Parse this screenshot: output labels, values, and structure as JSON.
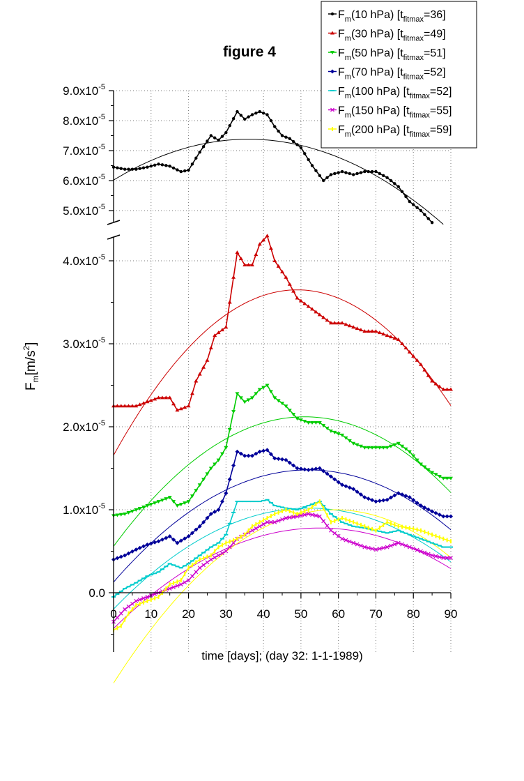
{
  "chart_data": {
    "type": "line",
    "title": "figure 4",
    "xlabel": "time [days]; (day 32: 1-1-1989)",
    "ylabel": "F_m [m/s²]",
    "ylabel_parts": {
      "base": "F",
      "sub": "m",
      "mid": "[m/s",
      "sup": "2",
      "end": "]"
    },
    "xlim": [
      0,
      90
    ],
    "xticks": [
      "0",
      "10",
      "20",
      "30",
      "40",
      "50",
      "60",
      "70",
      "80",
      "90"
    ],
    "yticks_upper": [
      {
        "value": 9.0,
        "mant": "9.0x10",
        "exp": "-5"
      },
      {
        "value": 8.0,
        "mant": "8.0x10",
        "exp": "-5"
      },
      {
        "value": 7.0,
        "mant": "7.0x10",
        "exp": "-5"
      },
      {
        "value": 6.0,
        "mant": "6.0x10",
        "exp": "-5"
      },
      {
        "value": 5.0,
        "mant": "5.0x10",
        "exp": "-5"
      }
    ],
    "yticks_lower": [
      {
        "value": 4.0,
        "mant": "4.0x10",
        "exp": "-5"
      },
      {
        "value": 3.0,
        "mant": "3.0x10",
        "exp": "-5"
      },
      {
        "value": 2.0,
        "mant": "2.0x10",
        "exp": "-5"
      },
      {
        "value": 1.0,
        "mant": "1.0x10",
        "exp": "-5"
      },
      {
        "value": 0.0,
        "mant": "0.0",
        "exp": ""
      }
    ],
    "y_units": "1e-5 m/s^2",
    "y_axis_break": [
      4.4,
      4.5
    ],
    "ylim_upper": [
      4.4,
      9.0
    ],
    "ylim_lower": [
      -0.7,
      4.4
    ],
    "grid": true,
    "legend_position": "top-right",
    "series": [
      {
        "name": "Fm(10 hPa) [tfitmax=36]",
        "legend": {
          "pre": "F",
          "sub1": "m",
          "mid": "(10 hPa) [t",
          "sub2": "fitmax",
          "end": "=36]"
        },
        "color": "#000000",
        "marker": "dot",
        "x": [
          0,
          3,
          6,
          9,
          12,
          15,
          18,
          20,
          23,
          26,
          28,
          30,
          33,
          35,
          37,
          39,
          41,
          43,
          45,
          47,
          50,
          53,
          56,
          58,
          61,
          64,
          67,
          70,
          73,
          76,
          79,
          82,
          85
        ],
        "y": [
          6.45,
          6.38,
          6.38,
          6.45,
          6.55,
          6.48,
          6.3,
          6.35,
          6.95,
          7.5,
          7.35,
          7.6,
          8.3,
          8.05,
          8.2,
          8.3,
          8.2,
          7.8,
          7.5,
          7.4,
          7.1,
          6.5,
          6.0,
          6.2,
          6.3,
          6.2,
          6.3,
          6.3,
          6.1,
          5.8,
          5.3,
          5.0,
          4.6
        ],
        "fit": {
          "peak_x": 36,
          "peak_y": 7.38,
          "curvature": 0.00105
        }
      },
      {
        "name": "Fm(30 hPa) [tfitmax=49]",
        "legend": {
          "pre": "F",
          "sub1": "m",
          "mid": "(30 hPa) [t",
          "sub2": "fitmax",
          "end": "=49]"
        },
        "color": "#cc0000",
        "marker": "triangle",
        "x": [
          0,
          3,
          6,
          9,
          12,
          15,
          17,
          20,
          22,
          25,
          27,
          30,
          33,
          35,
          37,
          39,
          41,
          43,
          46,
          49,
          52,
          55,
          58,
          61,
          64,
          67,
          70,
          73,
          76,
          79,
          82,
          85,
          88,
          90
        ],
        "y": [
          2.25,
          2.25,
          2.25,
          2.3,
          2.35,
          2.35,
          2.2,
          2.25,
          2.55,
          2.8,
          3.1,
          3.2,
          4.1,
          3.95,
          3.95,
          4.2,
          4.3,
          4.0,
          3.8,
          3.55,
          3.45,
          3.35,
          3.25,
          3.25,
          3.2,
          3.15,
          3.15,
          3.1,
          3.05,
          2.9,
          2.75,
          2.55,
          2.45,
          2.45
        ],
        "fit": {
          "peak_x": 49,
          "peak_y": 3.65,
          "curvature": 0.00083
        }
      },
      {
        "name": "Fm(50 hPa) [tfitmax=51]",
        "legend": {
          "pre": "F",
          "sub1": "m",
          "mid": "(50 hPa) [t",
          "sub2": "fitmax",
          "end": "=51]"
        },
        "color": "#00cc00",
        "marker": "triangle-down",
        "x": [
          0,
          3,
          6,
          9,
          12,
          15,
          17,
          20,
          23,
          26,
          28,
          30,
          33,
          35,
          37,
          39,
          41,
          43,
          46,
          49,
          52,
          55,
          58,
          61,
          64,
          67,
          70,
          73,
          76,
          79,
          82,
          85,
          88,
          90
        ],
        "y": [
          0.93,
          0.95,
          1.0,
          1.05,
          1.1,
          1.15,
          1.05,
          1.1,
          1.3,
          1.5,
          1.6,
          1.75,
          2.4,
          2.3,
          2.35,
          2.45,
          2.5,
          2.35,
          2.25,
          2.1,
          2.05,
          2.05,
          1.95,
          1.9,
          1.8,
          1.75,
          1.75,
          1.75,
          1.8,
          1.7,
          1.55,
          1.45,
          1.38,
          1.38
        ],
        "fit": {
          "peak_x": 51,
          "peak_y": 2.12,
          "curvature": 0.0006
        }
      },
      {
        "name": "Fm(70 hPa) [tfitmax=52]",
        "legend": {
          "pre": "F",
          "sub1": "m",
          "mid": "(70 hPa) [t",
          "sub2": "fitmax",
          "end": "=52]"
        },
        "color": "#000099",
        "marker": "diamond",
        "x": [
          0,
          3,
          6,
          9,
          12,
          15,
          17,
          20,
          23,
          26,
          28,
          30,
          33,
          35,
          37,
          39,
          41,
          43,
          46,
          49,
          52,
          55,
          58,
          61,
          64,
          67,
          70,
          73,
          76,
          79,
          82,
          85,
          88,
          90
        ],
        "y": [
          0.4,
          0.45,
          0.52,
          0.58,
          0.62,
          0.68,
          0.6,
          0.68,
          0.8,
          0.95,
          1.0,
          1.2,
          1.7,
          1.65,
          1.65,
          1.7,
          1.72,
          1.62,
          1.6,
          1.5,
          1.48,
          1.5,
          1.4,
          1.3,
          1.25,
          1.15,
          1.1,
          1.12,
          1.2,
          1.15,
          1.05,
          0.98,
          0.92,
          0.92
        ],
        "fit": {
          "peak_x": 52,
          "peak_y": 1.48,
          "curvature": 0.0005
        }
      },
      {
        "name": "Fm(100 hPa) [tfitmax=52]",
        "legend": {
          "pre": "F",
          "sub1": "m",
          "mid": "(100 hPa) [t",
          "sub2": "fitmax",
          "end": "=52]"
        },
        "color": "#00cccc",
        "marker": "dash",
        "x": [
          0,
          3,
          6,
          9,
          12,
          15,
          18,
          20,
          23,
          26,
          28,
          30,
          33,
          35,
          37,
          39,
          41,
          43,
          46,
          49,
          52,
          55,
          58,
          61,
          64,
          67,
          70,
          73,
          76,
          79,
          82,
          85,
          88,
          90
        ],
        "y": [
          -0.05,
          0.05,
          0.12,
          0.2,
          0.25,
          0.35,
          0.3,
          0.35,
          0.45,
          0.55,
          0.6,
          0.7,
          1.1,
          1.1,
          1.1,
          1.1,
          1.12,
          1.05,
          1.02,
          1.0,
          1.05,
          1.1,
          0.95,
          0.85,
          0.8,
          0.78,
          0.75,
          0.72,
          0.75,
          0.7,
          0.65,
          0.6,
          0.55,
          0.55
        ],
        "fit": {
          "peak_x": 52,
          "peak_y": 1.02,
          "curvature": 0.00045
        }
      },
      {
        "name": "Fm(150 hPa) [tfitmax=55]",
        "legend": {
          "pre": "F",
          "sub1": "m",
          "mid": "(150 hPa) [t",
          "sub2": "fitmax",
          "end": "=55]"
        },
        "color": "#cc00cc",
        "marker": "cross",
        "x": [
          0,
          3,
          6,
          9,
          12,
          15,
          18,
          20,
          23,
          26,
          28,
          30,
          33,
          35,
          37,
          39,
          41,
          43,
          46,
          49,
          52,
          55,
          58,
          61,
          64,
          67,
          70,
          73,
          76,
          79,
          82,
          85,
          88,
          90
        ],
        "y": [
          -0.35,
          -0.2,
          -0.1,
          -0.05,
          0.0,
          0.05,
          0.1,
          0.15,
          0.3,
          0.4,
          0.45,
          0.5,
          0.65,
          0.7,
          0.75,
          0.8,
          0.85,
          0.85,
          0.9,
          0.92,
          0.95,
          0.92,
          0.75,
          0.65,
          0.6,
          0.55,
          0.52,
          0.55,
          0.6,
          0.55,
          0.5,
          0.45,
          0.42,
          0.42
        ],
        "fit": {
          "peak_x": 55,
          "peak_y": 0.78,
          "curvature": 0.0004
        }
      },
      {
        "name": "Fm(200 hPa) [tfitmax=59]",
        "legend": {
          "pre": "F",
          "sub1": "m",
          "mid": "(200 hPa) [t",
          "sub2": "fitmax",
          "end": "=59]"
        },
        "color": "#ffff00",
        "marker": "bar",
        "x": [
          0,
          2,
          4,
          6,
          9,
          12,
          15,
          18,
          20,
          23,
          26,
          28,
          30,
          33,
          35,
          37,
          39,
          41,
          43,
          46,
          49,
          52,
          55,
          58,
          61,
          64,
          67,
          70,
          73,
          76,
          79,
          82,
          85,
          88,
          90
        ],
        "y": [
          -0.45,
          -0.4,
          -0.25,
          -0.15,
          -0.1,
          -0.05,
          0.1,
          0.15,
          0.3,
          0.4,
          0.45,
          0.55,
          0.6,
          0.65,
          0.7,
          0.8,
          0.85,
          0.9,
          0.95,
          1.0,
          0.95,
          1.0,
          1.1,
          0.85,
          0.9,
          0.85,
          0.8,
          0.75,
          0.85,
          0.8,
          0.78,
          0.75,
          0.7,
          0.65,
          0.62
        ],
        "fit": {
          "peak_x": 59,
          "peak_y": 1.0,
          "curvature": 0.0006
        }
      }
    ]
  }
}
